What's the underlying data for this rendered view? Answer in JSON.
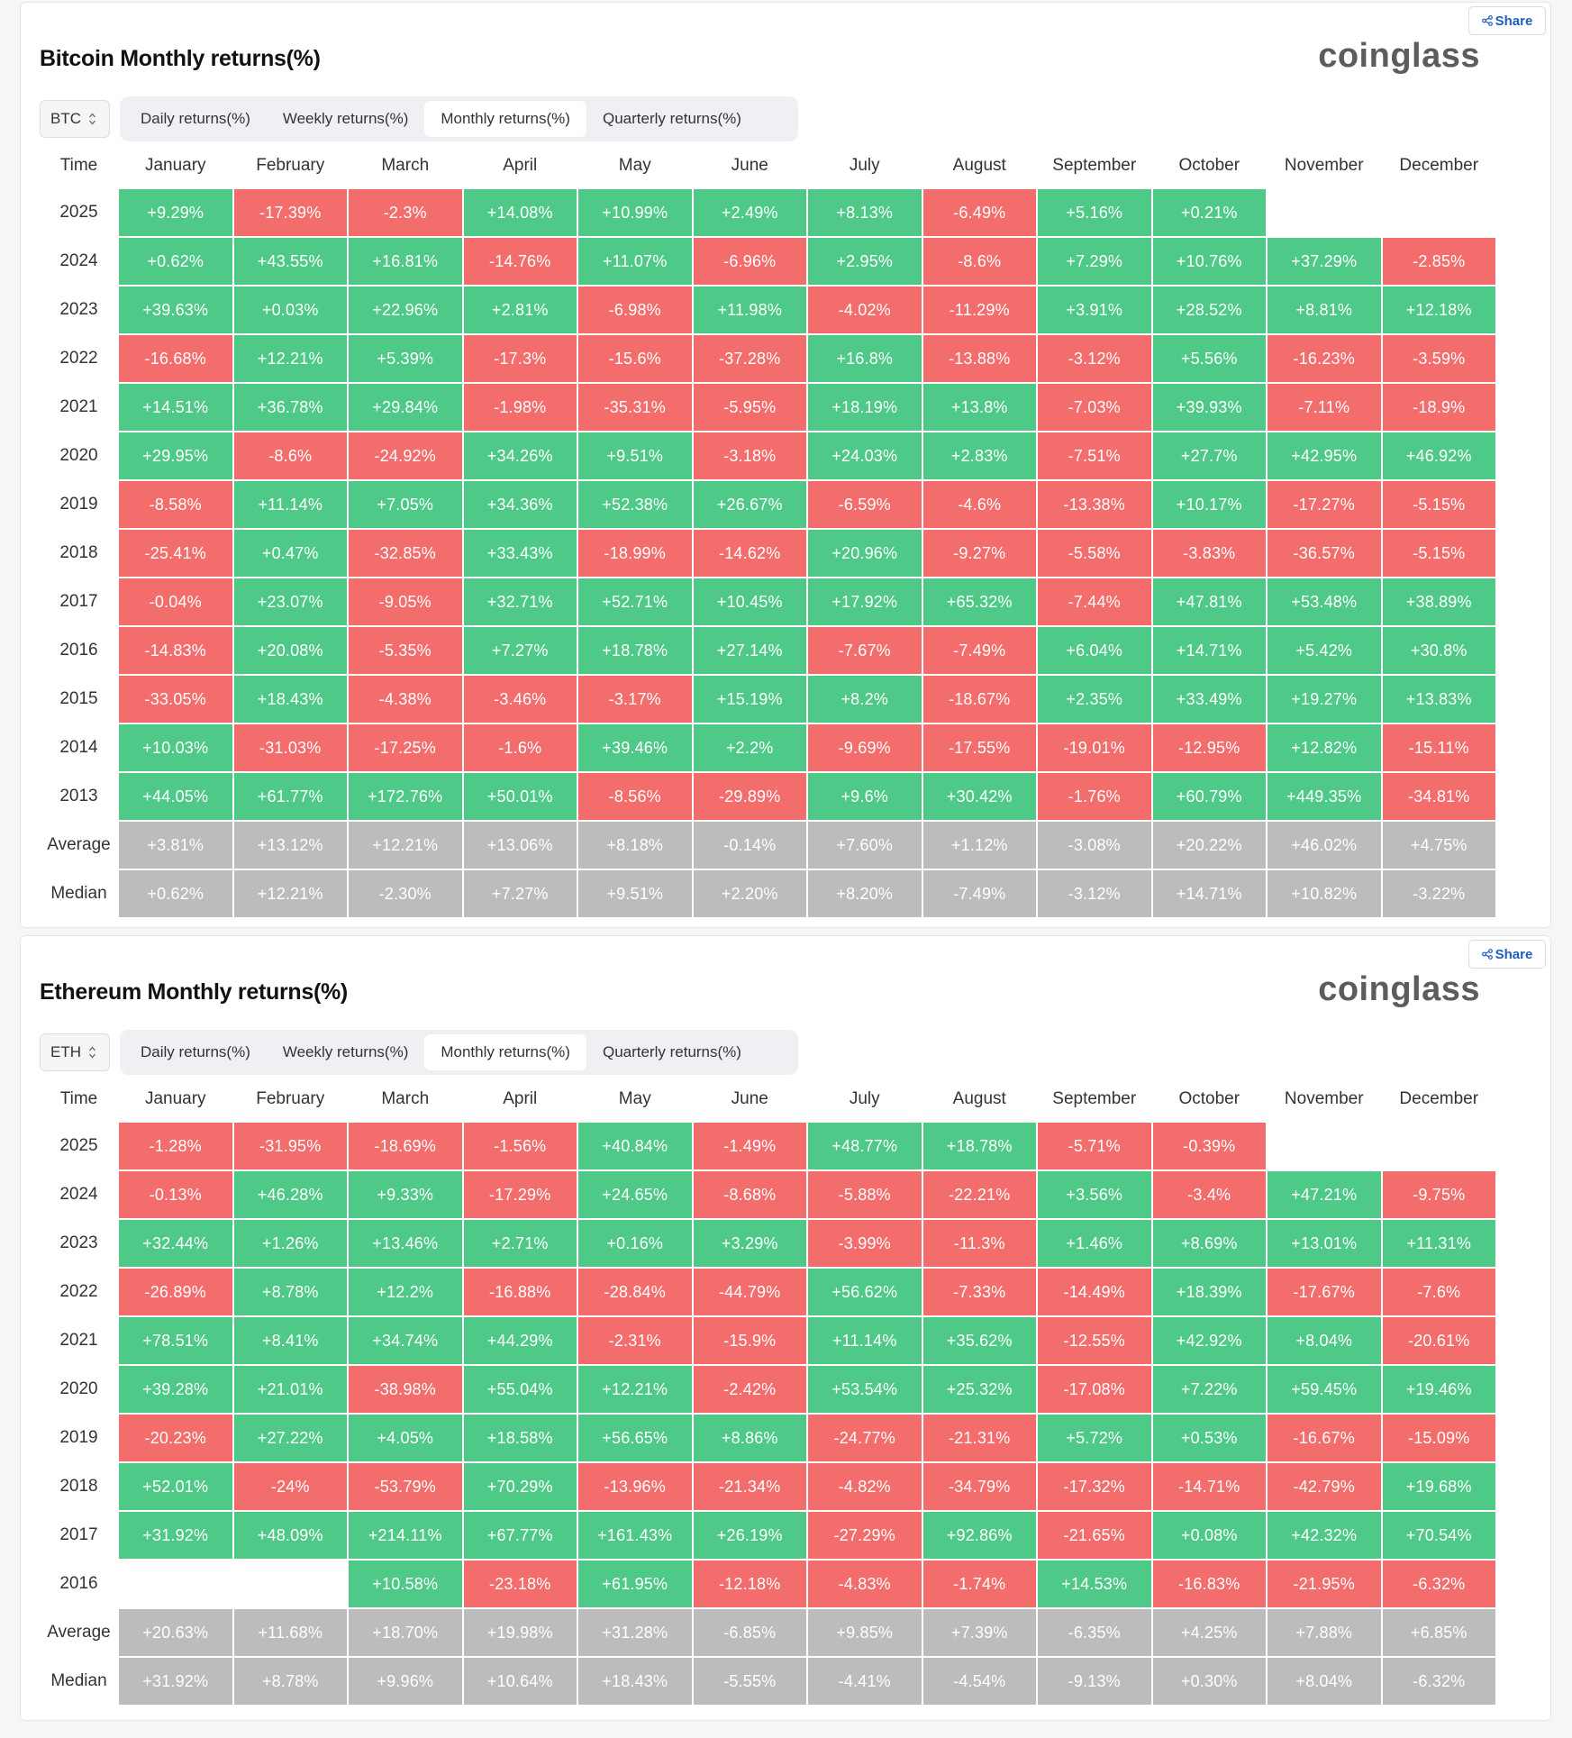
{
  "months": [
    "January",
    "February",
    "March",
    "April",
    "May",
    "June",
    "July",
    "August",
    "September",
    "October",
    "November",
    "December"
  ],
  "time_label": "Time",
  "share_label": "Share",
  "logo_text": "coinglass",
  "tabs": [
    "Daily returns(%)",
    "Weekly returns(%)",
    "Monthly returns(%)",
    "Quarterly returns(%)"
  ],
  "active_tab": 2,
  "colors": {
    "positive": "#4fc987",
    "negative": "#f36d6d",
    "stat": "#bcbcbc"
  },
  "panels": [
    {
      "id": "btc",
      "title": "Bitcoin Monthly returns(%)",
      "symbol": "BTC",
      "rows": [
        {
          "label": "2025",
          "values": [
            "+9.29%",
            "-17.39%",
            "-2.3%",
            "+14.08%",
            "+10.99%",
            "+2.49%",
            "+8.13%",
            "-6.49%",
            "+5.16%",
            "+0.21%",
            "",
            ""
          ]
        },
        {
          "label": "2024",
          "values": [
            "+0.62%",
            "+43.55%",
            "+16.81%",
            "-14.76%",
            "+11.07%",
            "-6.96%",
            "+2.95%",
            "-8.6%",
            "+7.29%",
            "+10.76%",
            "+37.29%",
            "-2.85%"
          ]
        },
        {
          "label": "2023",
          "values": [
            "+39.63%",
            "+0.03%",
            "+22.96%",
            "+2.81%",
            "-6.98%",
            "+11.98%",
            "-4.02%",
            "-11.29%",
            "+3.91%",
            "+28.52%",
            "+8.81%",
            "+12.18%"
          ]
        },
        {
          "label": "2022",
          "values": [
            "-16.68%",
            "+12.21%",
            "+5.39%",
            "-17.3%",
            "-15.6%",
            "-37.28%",
            "+16.8%",
            "-13.88%",
            "-3.12%",
            "+5.56%",
            "-16.23%",
            "-3.59%"
          ]
        },
        {
          "label": "2021",
          "values": [
            "+14.51%",
            "+36.78%",
            "+29.84%",
            "-1.98%",
            "-35.31%",
            "-5.95%",
            "+18.19%",
            "+13.8%",
            "-7.03%",
            "+39.93%",
            "-7.11%",
            "-18.9%"
          ]
        },
        {
          "label": "2020",
          "values": [
            "+29.95%",
            "-8.6%",
            "-24.92%",
            "+34.26%",
            "+9.51%",
            "-3.18%",
            "+24.03%",
            "+2.83%",
            "-7.51%",
            "+27.7%",
            "+42.95%",
            "+46.92%"
          ]
        },
        {
          "label": "2019",
          "values": [
            "-8.58%",
            "+11.14%",
            "+7.05%",
            "+34.36%",
            "+52.38%",
            "+26.67%",
            "-6.59%",
            "-4.6%",
            "-13.38%",
            "+10.17%",
            "-17.27%",
            "-5.15%"
          ]
        },
        {
          "label": "2018",
          "values": [
            "-25.41%",
            "+0.47%",
            "-32.85%",
            "+33.43%",
            "-18.99%",
            "-14.62%",
            "+20.96%",
            "-9.27%",
            "-5.58%",
            "-3.83%",
            "-36.57%",
            "-5.15%"
          ]
        },
        {
          "label": "2017",
          "values": [
            "-0.04%",
            "+23.07%",
            "-9.05%",
            "+32.71%",
            "+52.71%",
            "+10.45%",
            "+17.92%",
            "+65.32%",
            "-7.44%",
            "+47.81%",
            "+53.48%",
            "+38.89%"
          ]
        },
        {
          "label": "2016",
          "values": [
            "-14.83%",
            "+20.08%",
            "-5.35%",
            "+7.27%",
            "+18.78%",
            "+27.14%",
            "-7.67%",
            "-7.49%",
            "+6.04%",
            "+14.71%",
            "+5.42%",
            "+30.8%"
          ]
        },
        {
          "label": "2015",
          "values": [
            "-33.05%",
            "+18.43%",
            "-4.38%",
            "-3.46%",
            "-3.17%",
            "+15.19%",
            "+8.2%",
            "-18.67%",
            "+2.35%",
            "+33.49%",
            "+19.27%",
            "+13.83%"
          ]
        },
        {
          "label": "2014",
          "values": [
            "+10.03%",
            "-31.03%",
            "-17.25%",
            "-1.6%",
            "+39.46%",
            "+2.2%",
            "-9.69%",
            "-17.55%",
            "-19.01%",
            "-12.95%",
            "+12.82%",
            "-15.11%"
          ]
        },
        {
          "label": "2013",
          "values": [
            "+44.05%",
            "+61.77%",
            "+172.76%",
            "+50.01%",
            "-8.56%",
            "-29.89%",
            "+9.6%",
            "+30.42%",
            "-1.76%",
            "+60.79%",
            "+449.35%",
            "-34.81%"
          ]
        },
        {
          "label": "Average",
          "stat": true,
          "values": [
            "+3.81%",
            "+13.12%",
            "+12.21%",
            "+13.06%",
            "+8.18%",
            "-0.14%",
            "+7.60%",
            "+1.12%",
            "-3.08%",
            "+20.22%",
            "+46.02%",
            "+4.75%"
          ]
        },
        {
          "label": "Median",
          "stat": true,
          "values": [
            "+0.62%",
            "+12.21%",
            "-2.30%",
            "+7.27%",
            "+9.51%",
            "+2.20%",
            "+8.20%",
            "-7.49%",
            "-3.12%",
            "+14.71%",
            "+10.82%",
            "-3.22%"
          ]
        }
      ]
    },
    {
      "id": "eth",
      "title": "Ethereum Monthly returns(%)",
      "symbol": "ETH",
      "rows": [
        {
          "label": "2025",
          "values": [
            "-1.28%",
            "-31.95%",
            "-18.69%",
            "-1.56%",
            "+40.84%",
            "-1.49%",
            "+48.77%",
            "+18.78%",
            "-5.71%",
            "-0.39%",
            "",
            ""
          ]
        },
        {
          "label": "2024",
          "values": [
            "-0.13%",
            "+46.28%",
            "+9.33%",
            "-17.29%",
            "+24.65%",
            "-8.68%",
            "-5.88%",
            "-22.21%",
            "+3.56%",
            "-3.4%",
            "+47.21%",
            "-9.75%"
          ]
        },
        {
          "label": "2023",
          "values": [
            "+32.44%",
            "+1.26%",
            "+13.46%",
            "+2.71%",
            "+0.16%",
            "+3.29%",
            "-3.99%",
            "-11.3%",
            "+1.46%",
            "+8.69%",
            "+13.01%",
            "+11.31%"
          ]
        },
        {
          "label": "2022",
          "values": [
            "-26.89%",
            "+8.78%",
            "+12.2%",
            "-16.88%",
            "-28.84%",
            "-44.79%",
            "+56.62%",
            "-7.33%",
            "-14.49%",
            "+18.39%",
            "-17.67%",
            "-7.6%"
          ]
        },
        {
          "label": "2021",
          "values": [
            "+78.51%",
            "+8.41%",
            "+34.74%",
            "+44.29%",
            "-2.31%",
            "-15.9%",
            "+11.14%",
            "+35.62%",
            "-12.55%",
            "+42.92%",
            "+8.04%",
            "-20.61%"
          ]
        },
        {
          "label": "2020",
          "values": [
            "+39.28%",
            "+21.01%",
            "-38.98%",
            "+55.04%",
            "+12.21%",
            "-2.42%",
            "+53.54%",
            "+25.32%",
            "-17.08%",
            "+7.22%",
            "+59.45%",
            "+19.46%"
          ]
        },
        {
          "label": "2019",
          "values": [
            "-20.23%",
            "+27.22%",
            "+4.05%",
            "+18.58%",
            "+56.65%",
            "+8.86%",
            "-24.77%",
            "-21.31%",
            "+5.72%",
            "+0.53%",
            "-16.67%",
            "-15.09%"
          ]
        },
        {
          "label": "2018",
          "values": [
            "+52.01%",
            "-24%",
            "-53.79%",
            "+70.29%",
            "-13.96%",
            "-21.34%",
            "-4.82%",
            "-34.79%",
            "-17.32%",
            "-14.71%",
            "-42.79%",
            "+19.68%"
          ]
        },
        {
          "label": "2017",
          "values": [
            "+31.92%",
            "+48.09%",
            "+214.11%",
            "+67.77%",
            "+161.43%",
            "+26.19%",
            "-27.29%",
            "+92.86%",
            "-21.65%",
            "+0.08%",
            "+42.32%",
            "+70.54%"
          ]
        },
        {
          "label": "2016",
          "values": [
            "",
            "",
            "+10.58%",
            "-23.18%",
            "+61.95%",
            "-12.18%",
            "-4.83%",
            "-1.74%",
            "+14.53%",
            "-16.83%",
            "-21.95%",
            "-6.32%"
          ]
        },
        {
          "label": "Average",
          "stat": true,
          "values": [
            "+20.63%",
            "+11.68%",
            "+18.70%",
            "+19.98%",
            "+31.28%",
            "-6.85%",
            "+9.85%",
            "+7.39%",
            "-6.35%",
            "+4.25%",
            "+7.88%",
            "+6.85%"
          ]
        },
        {
          "label": "Median",
          "stat": true,
          "values": [
            "+31.92%",
            "+8.78%",
            "+9.96%",
            "+10.64%",
            "+18.43%",
            "-5.55%",
            "-4.41%",
            "-4.54%",
            "-9.13%",
            "+0.30%",
            "+8.04%",
            "-6.32%"
          ]
        }
      ]
    }
  ]
}
